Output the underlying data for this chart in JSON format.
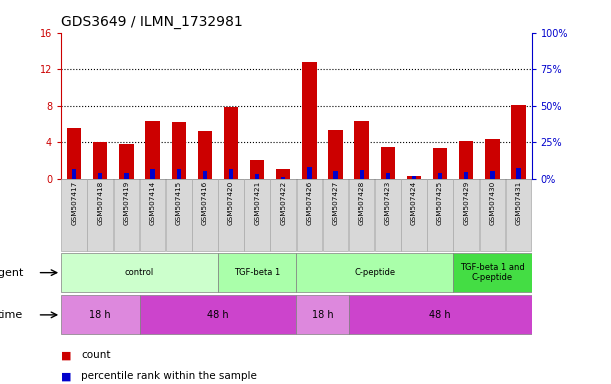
{
  "title": "GDS3649 / ILMN_1732981",
  "samples": [
    "GSM507417",
    "GSM507418",
    "GSM507419",
    "GSM507414",
    "GSM507415",
    "GSM507416",
    "GSM507420",
    "GSM507421",
    "GSM507422",
    "GSM507426",
    "GSM507427",
    "GSM507428",
    "GSM507423",
    "GSM507424",
    "GSM507425",
    "GSM507429",
    "GSM507430",
    "GSM507431"
  ],
  "count_values": [
    5.5,
    4.0,
    3.8,
    6.3,
    6.2,
    5.2,
    7.8,
    2.0,
    1.0,
    12.8,
    5.3,
    6.3,
    3.5,
    0.3,
    3.3,
    4.1,
    4.3,
    8.1
  ],
  "percentile_values": [
    6.25,
    4.0,
    4.0,
    6.25,
    6.25,
    5.0,
    6.5,
    3.25,
    1.0,
    8.0,
    5.5,
    5.75,
    3.5,
    1.5,
    3.5,
    4.5,
    5.5,
    7.5
  ],
  "count_color": "#CC0000",
  "percentile_color": "#0000CC",
  "ylim_left": [
    0,
    16
  ],
  "ylim_right": [
    0,
    100
  ],
  "yticks_left": [
    0,
    4,
    8,
    12,
    16
  ],
  "yticks_right": [
    0,
    25,
    50,
    75,
    100
  ],
  "ytick_labels_left": [
    "0",
    "4",
    "8",
    "12",
    "16"
  ],
  "ytick_labels_right": [
    "0%",
    "25%",
    "50%",
    "75%",
    "100%"
  ],
  "grid_lines": [
    4,
    8,
    12
  ],
  "agent_groups": [
    {
      "label": "control",
      "start": 0,
      "end": 6,
      "color": "#ccffcc"
    },
    {
      "label": "TGF-beta 1",
      "start": 6,
      "end": 9,
      "color": "#aaffaa"
    },
    {
      "label": "C-peptide",
      "start": 9,
      "end": 15,
      "color": "#aaffaa"
    },
    {
      "label": "TGF-beta 1 and\nC-peptide",
      "start": 15,
      "end": 18,
      "color": "#44dd44"
    }
  ],
  "time_groups": [
    {
      "label": "18 h",
      "start": 0,
      "end": 3,
      "color": "#dd88dd"
    },
    {
      "label": "48 h",
      "start": 3,
      "end": 9,
      "color": "#cc44cc"
    },
    {
      "label": "18 h",
      "start": 9,
      "end": 11,
      "color": "#dd88dd"
    },
    {
      "label": "48 h",
      "start": 11,
      "end": 18,
      "color": "#cc44cc"
    }
  ],
  "bar_width": 0.55,
  "bg_color": "#ffffff",
  "sample_area_color": "#d8d8d8",
  "agent_label": "agent",
  "time_label": "time",
  "legend_count": "count",
  "legend_percentile": "percentile rank within the sample",
  "title_fontsize": 10,
  "tick_fontsize": 7,
  "label_fontsize": 8
}
